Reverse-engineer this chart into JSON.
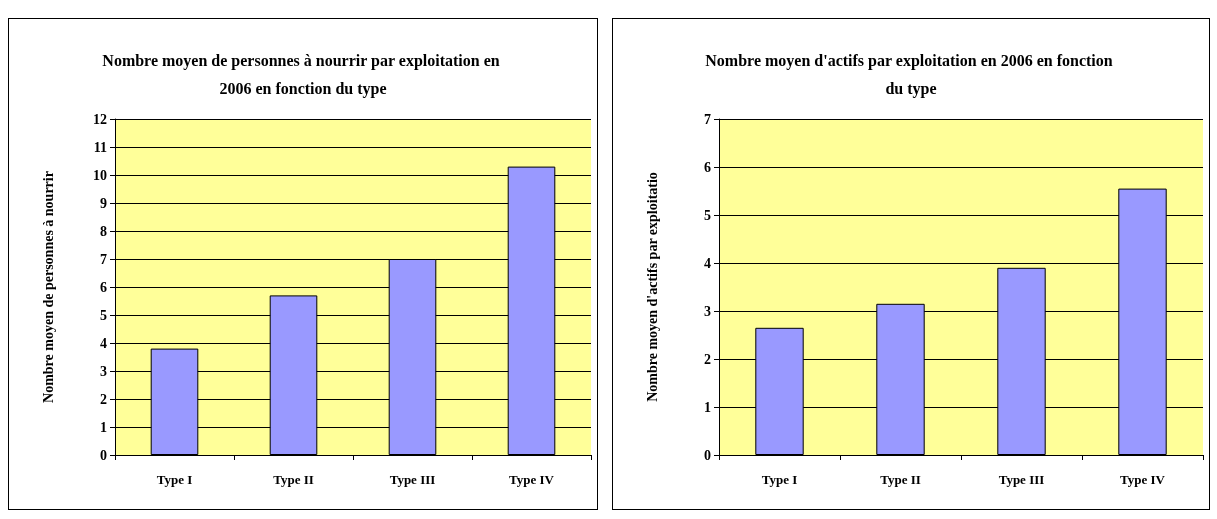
{
  "chart_data": [
    {
      "type": "bar",
      "title": "Nombre moyen de personnes à nourrir par exploitation en 2006 en fonction du type",
      "ylabel": "Nombre moyen de personnes à nourrir",
      "categories": [
        "Type I",
        "Type II",
        "Type III",
        "Type IV"
      ],
      "values": [
        3.8,
        5.7,
        7.0,
        10.3
      ],
      "color": "#9999ff",
      "ylim": [
        0,
        12
      ],
      "yticks": [
        0,
        1,
        2,
        3,
        4,
        5,
        6,
        7,
        8,
        9,
        10,
        11,
        12
      ],
      "grid": "y"
    },
    {
      "type": "bar",
      "title": "Nombre moyen d'actifs par exploitation en 2006 en fonction du type",
      "ylabel": "Nombre moyen d'actifs par exploitatio",
      "categories": [
        "Type I",
        "Type II",
        "Type III",
        "Type IV"
      ],
      "values": [
        2.65,
        3.15,
        3.9,
        5.55
      ],
      "color": "#9999ff",
      "ylim": [
        0,
        7
      ],
      "yticks": [
        0,
        1,
        2,
        3,
        4,
        5,
        6,
        7
      ],
      "grid": "y"
    }
  ]
}
